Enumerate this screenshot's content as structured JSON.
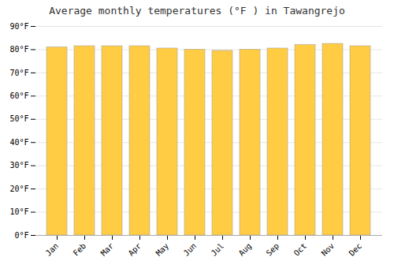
{
  "chart_data": {
    "type": "bar",
    "title": "Average monthly temperatures (°F ) in Tawangrejo",
    "categories": [
      "Jan",
      "Feb",
      "Mar",
      "Apr",
      "May",
      "Jun",
      "Jul",
      "Aug",
      "Sep",
      "Oct",
      "Nov",
      "Dec"
    ],
    "values": [
      81,
      81.5,
      81.5,
      81.5,
      80.5,
      80,
      79.5,
      80,
      80.5,
      82,
      82.5,
      81.5
    ],
    "color": "#FFCC44",
    "ylim": [
      0,
      90
    ],
    "yticks": [
      {
        "value": 0,
        "label": "0°F"
      },
      {
        "value": 10,
        "label": "10°F"
      },
      {
        "value": 20,
        "label": "20°F"
      },
      {
        "value": 30,
        "label": "30°F"
      },
      {
        "value": 40,
        "label": "40°F"
      },
      {
        "value": 50,
        "label": "50°F"
      },
      {
        "value": 60,
        "label": "60°F"
      },
      {
        "value": 70,
        "label": "70°F"
      },
      {
        "value": 80,
        "label": "80°F"
      },
      {
        "value": 90,
        "label": "90°F"
      }
    ],
    "grid": true
  }
}
